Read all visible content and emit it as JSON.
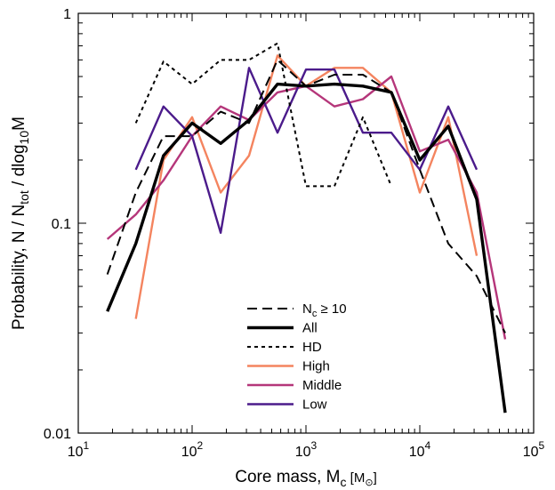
{
  "chart_data": {
    "type": "line",
    "title": "",
    "xlabel": "Core mass, M",
    "xlabel_sub": "c",
    "xlabel_unit": " [M",
    "xlabel_unit_sub": "⊙",
    "xlabel_unit_close": "]",
    "ylabel": "Probability, N / N",
    "ylabel_sub": "tot",
    "ylabel_mid": " / dlog",
    "ylabel_sub2": "10",
    "ylabel_end": "M",
    "xscale": "log",
    "yscale": "log",
    "xlim": [
      10,
      100000
    ],
    "ylim": [
      0.01,
      1
    ],
    "grid": false,
    "legend_position": "bottom-center",
    "x_tick_labels": [
      {
        "value": 10,
        "base": "10",
        "exp": "1"
      },
      {
        "value": 100,
        "base": "10",
        "exp": "2"
      },
      {
        "value": 1000,
        "base": "10",
        "exp": "3"
      },
      {
        "value": 10000,
        "base": "10",
        "exp": "4"
      },
      {
        "value": 100000,
        "base": "10",
        "exp": "5"
      }
    ],
    "y_tick_labels": [
      {
        "value": 0.01,
        "label": "0.01"
      },
      {
        "value": 0.1,
        "label": "0.1"
      },
      {
        "value": 1,
        "label": "1"
      }
    ],
    "series": [
      {
        "name": "N",
        "name_sub": "c",
        "name_rest": " ≥ 10",
        "style": "dashed",
        "color": "#000000",
        "width": 2,
        "x": [
          18,
          32,
          56,
          100,
          178,
          316,
          562,
          1000,
          1778,
          3162,
          5623,
          10000,
          17783,
          31623,
          56234
        ],
        "y": [
          0.057,
          0.14,
          0.26,
          0.26,
          0.34,
          0.3,
          0.6,
          0.45,
          0.51,
          0.51,
          0.42,
          0.18,
          0.08,
          0.056,
          0.03
        ]
      },
      {
        "name": "All",
        "style": "solid",
        "color": "#000000",
        "width": 3.4,
        "x": [
          18,
          32,
          56,
          100,
          178,
          316,
          562,
          1000,
          1778,
          3162,
          5623,
          10000,
          17783,
          31623,
          56234
        ],
        "y": [
          0.038,
          0.08,
          0.21,
          0.3,
          0.24,
          0.31,
          0.46,
          0.45,
          0.46,
          0.45,
          0.42,
          0.2,
          0.29,
          0.13,
          0.0125
        ]
      },
      {
        "name": "HD",
        "style": "dotted",
        "color": "#000000",
        "width": 2,
        "x": [
          32,
          56,
          100,
          178,
          316,
          562,
          1000,
          1778,
          3162,
          5623
        ],
        "y": [
          0.3,
          0.59,
          0.46,
          0.6,
          0.6,
          0.72,
          0.15,
          0.15,
          0.32,
          0.15
        ]
      },
      {
        "name": "High",
        "style": "solid",
        "color": "#f4845f",
        "width": 2.4,
        "x": [
          32,
          56,
          100,
          178,
          316,
          562,
          1000,
          1778,
          3162,
          5623,
          10000,
          17783,
          31623
        ],
        "y": [
          0.035,
          0.2,
          0.32,
          0.14,
          0.21,
          0.63,
          0.45,
          0.55,
          0.55,
          0.42,
          0.14,
          0.32,
          0.07
        ]
      },
      {
        "name": "Middle",
        "style": "solid",
        "color": "#b5367a",
        "width": 2.4,
        "x": [
          18,
          32,
          56,
          100,
          178,
          316,
          562,
          1000,
          1778,
          3162,
          5623,
          10000,
          17783,
          31623,
          56234
        ],
        "y": [
          0.084,
          0.11,
          0.16,
          0.26,
          0.36,
          0.31,
          0.42,
          0.45,
          0.36,
          0.39,
          0.5,
          0.22,
          0.25,
          0.14,
          0.028
        ]
      },
      {
        "name": "Low",
        "style": "solid",
        "color": "#4b1b8b",
        "width": 2.4,
        "x": [
          32,
          56,
          100,
          178,
          316,
          562,
          1000,
          1778,
          3162,
          5623,
          10000,
          17783,
          31623
        ],
        "y": [
          0.18,
          0.36,
          0.26,
          0.09,
          0.55,
          0.27,
          0.54,
          0.54,
          0.27,
          0.27,
          0.18,
          0.36,
          0.18
        ]
      }
    ]
  }
}
